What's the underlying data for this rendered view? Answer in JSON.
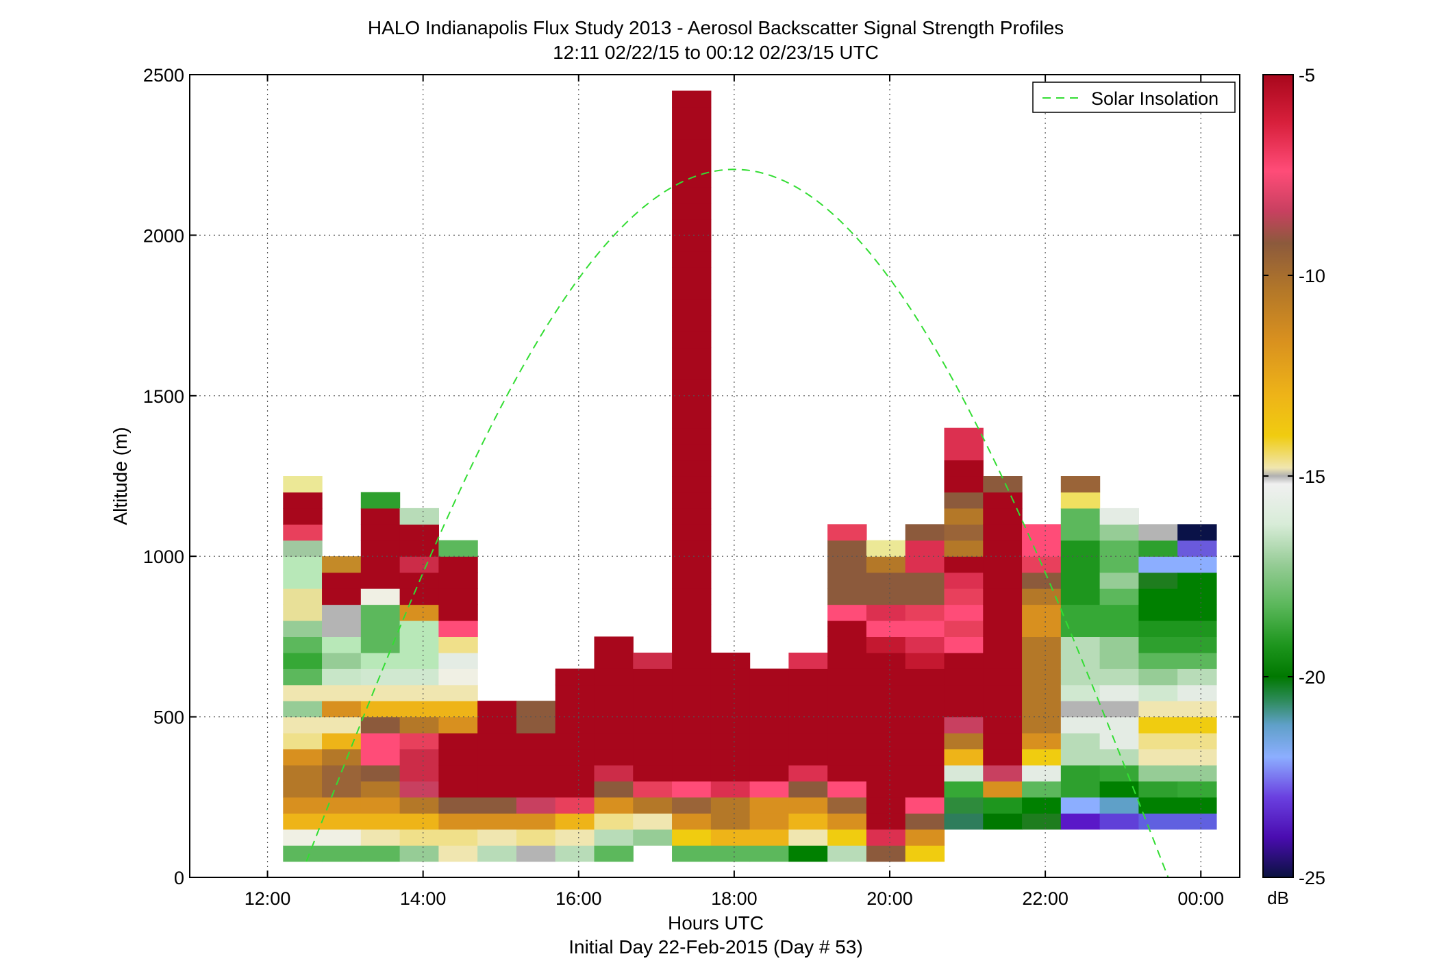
{
  "chart_data": {
    "type": "heatmap",
    "title": "HALO Indianapolis Flux Study 2013 - Aerosol Backscatter Signal Strength Profiles",
    "subtitle": "12:11 02/22/15 to 00:12 02/23/15  UTC",
    "xlabel": "Hours UTC",
    "xlabel2": "Initial Day 22-Feb-2015 (Day # 53)",
    "ylabel": "Altitude (m)",
    "x_ticks": [
      "12:00",
      "14:00",
      "16:00",
      "18:00",
      "20:00",
      "22:00",
      "00:00"
    ],
    "x_tick_hours": [
      12,
      14,
      16,
      18,
      20,
      22,
      24
    ],
    "x_range_hours": [
      11,
      24.5
    ],
    "y_ticks": [
      "0",
      "500",
      "1000",
      "1500",
      "2000",
      "2500"
    ],
    "y_tick_values": [
      0,
      500,
      1000,
      1500,
      2000,
      2500
    ],
    "ylim": [
      0,
      2500
    ],
    "grid": true,
    "legend": {
      "entries": [
        "Solar Insolation"
      ],
      "placement": "top-right",
      "line_color": "#33dd33",
      "line_style": "dashed"
    },
    "colorbar": {
      "unit": "dB",
      "ticks": [
        "-5",
        "-10",
        "-15",
        "-20",
        "-25"
      ],
      "tick_values": [
        -5,
        -10,
        -15,
        -20,
        -25
      ],
      "range": [
        -25,
        -5
      ]
    },
    "grid_cells": {
      "time_start_hours": 12.2,
      "time_step_hours": 0.5,
      "alt_start_m": 50,
      "alt_step_m": 50,
      "columns": [
        {
          "bottom": 1,
          "colors": [
            "#5cb85c",
            "#f0f0e4",
            "#eeb418",
            "#d8901f",
            "#b47828",
            "#b47828",
            "#d8901f",
            "#efe08a",
            "#f0e6b0",
            "#96cc96",
            "#f0e6b0",
            "#5cb85c",
            "#36a836",
            "#5cb85c",
            "#96cc96",
            "#e8e098",
            "#e8e098",
            "#b8e8b8",
            "#b8e8b8",
            "#a0c8a0",
            "#e8405c",
            "#a8071c",
            "#a8071c",
            "#ece896"
          ]
        },
        {
          "bottom": 1,
          "colors": [
            "#5cb85c",
            "#f0f0e4",
            "#eeb418",
            "#d8901f",
            "#9a6438",
            "#9a6438",
            "#b47828",
            "#eeb418",
            "#f0e6b0",
            "#d8901f",
            "#f0e6b0",
            "#c8e6c8",
            "#96cc96",
            "#b8e8b8",
            "#b4b4b4",
            "#b4b4b4",
            "#a8071c",
            "#a8071c",
            "#c48a28"
          ]
        },
        {
          "bottom": 1,
          "colors": [
            "#5cb85c",
            "#f0e6b0",
            "#eeb418",
            "#d8901f",
            "#b47828",
            "#8c5a3c",
            "#ff4c78",
            "#ff4c78",
            "#8c5a3c",
            "#eeb418",
            "#f0e6b0",
            "#d0e8d0",
            "#b8e8b8",
            "#5cb85c",
            "#5cb85c",
            "#5cb85c",
            "#f0f0e4",
            "#a8071c",
            "#a8071c",
            "#a8071c",
            "#a8071c",
            "#a8071c",
            "#2ea02e"
          ]
        },
        {
          "bottom": 1,
          "colors": [
            "#96cc96",
            "#f0e08a",
            "#eeb418",
            "#b47828",
            "#c84060",
            "#cc2c48",
            "#cc2c48",
            "#e8405c",
            "#b47828",
            "#eeb418",
            "#f0e6b0",
            "#d0e8d0",
            "#b8e8b8",
            "#b8e8b8",
            "#b8e8b8",
            "#d8901f",
            "#a8071c",
            "#a8071c",
            "#cc2c48",
            "#a8071c",
            "#a8071c",
            "#b8dcb8"
          ]
        },
        {
          "bottom": 1,
          "colors": [
            "#f0e6b0",
            "#f0e08a",
            "#d8901f",
            "#8c5a3c",
            "#a8071c",
            "#a8071c",
            "#a8071c",
            "#a8071c",
            "#d8901f",
            "#eeb418",
            "#f0e6b0",
            "#f0f0e4",
            "#e4ece4",
            "#f0e08a",
            "#ff4c78",
            "#a8071c",
            "#a8071c",
            "#a8071c",
            "#a8071c",
            "#5cb85c"
          ]
        },
        {
          "bottom": 1,
          "colors": [
            "#b8dcb8",
            "#f0e6b0",
            "#d8901f",
            "#8c5a3c",
            "#a8071c",
            "#a8071c",
            "#a8071c",
            "#a8071c",
            "#a8071c",
            "#a8071c"
          ]
        },
        {
          "bottom": 1,
          "colors": [
            "#b4b4b4",
            "#f0e08a",
            "#d8901f",
            "#c84060",
            "#a8071c",
            "#a8071c",
            "#a8071c",
            "#a8071c",
            "#8c5a3c",
            "#8c5a3c"
          ]
        },
        {
          "bottom": 1,
          "colors": [
            "#b8dcb8",
            "#f0e6b0",
            "#eeb418",
            "#e8405c",
            "#a8071c",
            "#a8071c",
            "#a8071c",
            "#a8071c",
            "#a8071c",
            "#a8071c",
            "#a8071c",
            "#a8071c"
          ]
        },
        {
          "bottom": 1,
          "colors": [
            "#5cb85c",
            "#b8dcb8",
            "#f0e08a",
            "#d8901f",
            "#8c5a3c",
            "#cc2c48",
            "#a8071c",
            "#a8071c",
            "#a8071c",
            "#a8071c",
            "#a8071c",
            "#a8071c",
            "#a8071c",
            "#a8071c"
          ]
        },
        {
          "bottom": 2,
          "colors": [
            "#96cc96",
            "#f0e6b0",
            "#b47828",
            "#e8405c",
            "#a8071c",
            "#a8071c",
            "#a8071c",
            "#a8071c",
            "#a8071c",
            "#a8071c",
            "#a8071c",
            "#cc2c48"
          ]
        },
        {
          "bottom": 1,
          "colors": [
            "#5cb85c",
            "#f0cc10",
            "#d8901f",
            "#9a6438",
            "#ff4c78",
            "#a8071c",
            "#a8071c",
            "#a8071c",
            "#a8071c",
            "#a8071c",
            "#a8071c",
            "#a8071c",
            "#a8071c",
            "#a8071c",
            "#a8071c",
            "#a8071c",
            "#a8071c",
            "#a8071c",
            "#a8071c",
            "#a8071c",
            "#a8071c",
            "#a8071c",
            "#a8071c",
            "#a8071c",
            "#a8071c",
            "#a8071c",
            "#a8071c",
            "#a8071c",
            "#a8071c",
            "#a8071c",
            "#a8071c",
            "#a8071c",
            "#a8071c",
            "#a8071c",
            "#a8071c",
            "#a8071c",
            "#a8071c",
            "#a8071c",
            "#a8071c",
            "#a8071c",
            "#a8071c",
            "#a8071c",
            "#a8071c",
            "#a8071c",
            "#a8071c",
            "#a8071c",
            "#a8071c",
            "#a8071c"
          ]
        },
        {
          "bottom": 1,
          "colors": [
            "#5cb85c",
            "#eeb418",
            "#b47828",
            "#b47828",
            "#dc3050",
            "#a8071c",
            "#a8071c",
            "#a8071c",
            "#a8071c",
            "#a8071c",
            "#a8071c",
            "#a8071c",
            "#a8071c"
          ]
        },
        {
          "bottom": 1,
          "colors": [
            "#5cb85c",
            "#eeb418",
            "#d8901f",
            "#d8901f",
            "#ff4c78",
            "#a8071c",
            "#a8071c",
            "#a8071c",
            "#a8071c",
            "#a8071c",
            "#a8071c",
            "#a8071c"
          ]
        },
        {
          "bottom": 1,
          "colors": [
            "#008000",
            "#f0e6b0",
            "#eeb418",
            "#d8901f",
            "#8c5a3c",
            "#dc3050",
            "#a8071c",
            "#a8071c",
            "#a8071c",
            "#a8071c",
            "#a8071c",
            "#a8071c",
            "#dc3050"
          ]
        },
        {
          "bottom": 1,
          "colors": [
            "#b8dcb8",
            "#f0cc10",
            "#d8901f",
            "#9a6438",
            "#ff4c78",
            "#a8071c",
            "#a8071c",
            "#a8071c",
            "#a8071c",
            "#a8071c",
            "#a8071c",
            "#a8071c",
            "#a8071c",
            "#a8071c",
            "#a8071c",
            "#ff4c78",
            "#8c5a3c",
            "#8c5a3c",
            "#8c5a3c",
            "#8c5a3c",
            "#e8405c"
          ]
        },
        {
          "bottom": 1,
          "colors": [
            "#8c5a3c",
            "#dc3050",
            "#a8071c",
            "#a8071c",
            "#a8071c",
            "#a8071c",
            "#a8071c",
            "#a8071c",
            "#a8071c",
            "#a8071c",
            "#a8071c",
            "#a8071c",
            "#a8071c",
            "#c41830",
            "#ff4c78",
            "#dc3050",
            "#8c5a3c",
            "#8c5a3c",
            "#b47828",
            "#ece896"
          ]
        },
        {
          "bottom": 1,
          "colors": [
            "#f0cc10",
            "#d8901f",
            "#8c5a3c",
            "#ff4c78",
            "#a8071c",
            "#a8071c",
            "#a8071c",
            "#a8071c",
            "#a8071c",
            "#a8071c",
            "#a8071c",
            "#a8071c",
            "#c41830",
            "#dc3050",
            "#ff4c78",
            "#e8405c",
            "#8c5a3c",
            "#8c5a3c",
            "#dc3050",
            "#dc3050",
            "#8c5a3c"
          ]
        },
        {
          "bottom": 3,
          "colors": [
            "#2e7d5c",
            "#2e8b3c",
            "#36a836",
            "#d8e8d8",
            "#eeb418",
            "#b47828",
            "#c84060",
            "#a8071c",
            "#a8071c",
            "#a8071c",
            "#a8071c",
            "#ff4c78",
            "#e8405c",
            "#ff4c78",
            "#e8405c",
            "#dc3050",
            "#a8071c",
            "#b47828",
            "#9a6438",
            "#b47828",
            "#8c5a3c",
            "#a8071c",
            "#a8071c",
            "#dc3050",
            "#dc3050"
          ]
        },
        {
          "bottom": 3,
          "colors": [
            "#007800",
            "#1e961e",
            "#d8901f",
            "#c84060",
            "#a8071c",
            "#a8071c",
            "#a8071c",
            "#a8071c",
            "#a8071c",
            "#a8071c",
            "#a8071c",
            "#a8071c",
            "#a8071c",
            "#a8071c",
            "#a8071c",
            "#a8071c",
            "#a8071c",
            "#a8071c",
            "#a8071c",
            "#a8071c",
            "#a8071c",
            "#8c5a3c"
          ]
        },
        {
          "bottom": 3,
          "colors": [
            "#1e7d1e",
            "#008000",
            "#5cb85c",
            "#e4ece4",
            "#f0cc10",
            "#d8901f",
            "#b47828",
            "#b47828",
            "#b47828",
            "#b47828",
            "#b47828",
            "#b47828",
            "#d8901f",
            "#d8901f",
            "#b47828",
            "#8c5a3c",
            "#e8405c",
            "#ff4c78",
            "#ff4c78"
          ]
        },
        {
          "bottom": 3,
          "colors": [
            "#5a18c8",
            "#8caeff",
            "#2ea02e",
            "#2ea02e",
            "#b8dcb8",
            "#b8dcb8",
            "#e4ece4",
            "#b4b4b4",
            "#d0e8d0",
            "#b8dcb8",
            "#b8dcb8",
            "#b8dcb8",
            "#36a836",
            "#36a836",
            "#1e961e",
            "#1e961e",
            "#1e961e",
            "#1e961e",
            "#5cb85c",
            "#5cb85c",
            "#f0e060",
            "#9a6438"
          ]
        },
        {
          "bottom": 3,
          "colors": [
            "#6040d8",
            "#5fa0c8",
            "#008000",
            "#36a836",
            "#b8dcb8",
            "#e4ece4",
            "#e4ece4",
            "#b4b4b4",
            "#e4ece4",
            "#b8dcb8",
            "#96cc96",
            "#96cc96",
            "#36a836",
            "#36a836",
            "#5cb85c",
            "#96cc96",
            "#5cb85c",
            "#5cb85c",
            "#96cc96",
            "#e4ece4"
          ]
        },
        {
          "bottom": 3,
          "colors": [
            "#6060e0",
            "#008000",
            "#2ea02e",
            "#96cc96",
            "#f0e6b0",
            "#f0e08a",
            "#f0cc10",
            "#f0e6b0",
            "#d0e8d0",
            "#96cc96",
            "#5cb85c",
            "#2ea02e",
            "#1e961e",
            "#008000",
            "#008000",
            "#1e7d1e",
            "#8caeff",
            "#2ea02e",
            "#b4b4b4"
          ]
        },
        {
          "bottom": 3,
          "colors": [
            "#6060e0",
            "#008000",
            "#36a836",
            "#96cc96",
            "#f0e6b0",
            "#f0e08a",
            "#f0cc10",
            "#f0e6b0",
            "#e4ece4",
            "#b8dcb8",
            "#5cb85c",
            "#2ea02e",
            "#1e961e",
            "#008000",
            "#008000",
            "#008000",
            "#8caeff",
            "#6a5adc",
            "#0a1248"
          ]
        }
      ]
    }
  }
}
